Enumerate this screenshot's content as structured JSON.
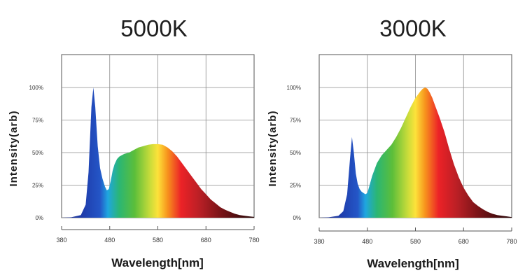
{
  "chart_data": [
    {
      "type": "area",
      "title": "5000K",
      "xlabel": "Wavelength[nm]",
      "ylabel": "Intensity(arb)",
      "xlim": [
        380,
        780
      ],
      "ylim": [
        0,
        100
      ],
      "x_ticks": [
        "380",
        "480",
        "580",
        "680",
        "780"
      ],
      "y_ticks": [
        "0%",
        "25%",
        "50%",
        "75%",
        "100%"
      ],
      "grid": true,
      "fill": "visible-spectrum-gradient",
      "series": [
        {
          "name": "5000K spectrum",
          "x": [
            380,
            400,
            420,
            430,
            436,
            442,
            446,
            450,
            455,
            460,
            465,
            470,
            474,
            478,
            482,
            486,
            490,
            495,
            500,
            510,
            520,
            530,
            540,
            550,
            560,
            570,
            580,
            590,
            600,
            610,
            620,
            630,
            640,
            650,
            660,
            670,
            680,
            690,
            700,
            710,
            720,
            730,
            740,
            750,
            760,
            770,
            780
          ],
          "y": [
            0,
            0.3,
            2,
            10,
            35,
            85,
            100,
            85,
            55,
            38,
            30,
            24,
            21,
            22,
            28,
            36,
            41,
            45,
            47,
            49,
            50,
            52,
            54,
            55,
            56,
            56.5,
            56.5,
            56,
            54,
            51,
            47,
            42,
            37,
            32,
            27,
            22,
            18,
            14,
            11,
            8,
            6,
            4.5,
            3,
            2,
            1.5,
            1,
            0.6
          ]
        }
      ]
    },
    {
      "type": "area",
      "title": "3000K",
      "xlabel": "Wavelength[nm]",
      "ylabel": "Intensity(arb)",
      "xlim": [
        380,
        780
      ],
      "ylim": [
        0,
        100
      ],
      "x_ticks": [
        "380",
        "480",
        "580",
        "680",
        "780"
      ],
      "y_ticks": [
        "0%",
        "25%",
        "50%",
        "75%",
        "100%"
      ],
      "grid": true,
      "fill": "visible-spectrum-gradient",
      "series": [
        {
          "name": "3000K spectrum",
          "x": [
            380,
            400,
            420,
            430,
            438,
            444,
            448,
            452,
            456,
            460,
            464,
            468,
            472,
            476,
            480,
            484,
            490,
            500,
            510,
            520,
            530,
            540,
            550,
            560,
            570,
            580,
            590,
            595,
            600,
            605,
            610,
            615,
            620,
            630,
            640,
            650,
            660,
            670,
            680,
            690,
            700,
            710,
            720,
            730,
            740,
            750,
            760,
            770,
            780
          ],
          "y": [
            0,
            0.3,
            1.5,
            5,
            18,
            45,
            62,
            50,
            34,
            26,
            22,
            20,
            19,
            18,
            19,
            24,
            32,
            42,
            48,
            52,
            56,
            62,
            69,
            77,
            85,
            92,
            97,
            99,
            100,
            99,
            96,
            92,
            87,
            77,
            66,
            53,
            41,
            31,
            23,
            17,
            12,
            9,
            6.5,
            4.5,
            3,
            2,
            1.5,
            1,
            0.5
          ]
        }
      ]
    }
  ]
}
